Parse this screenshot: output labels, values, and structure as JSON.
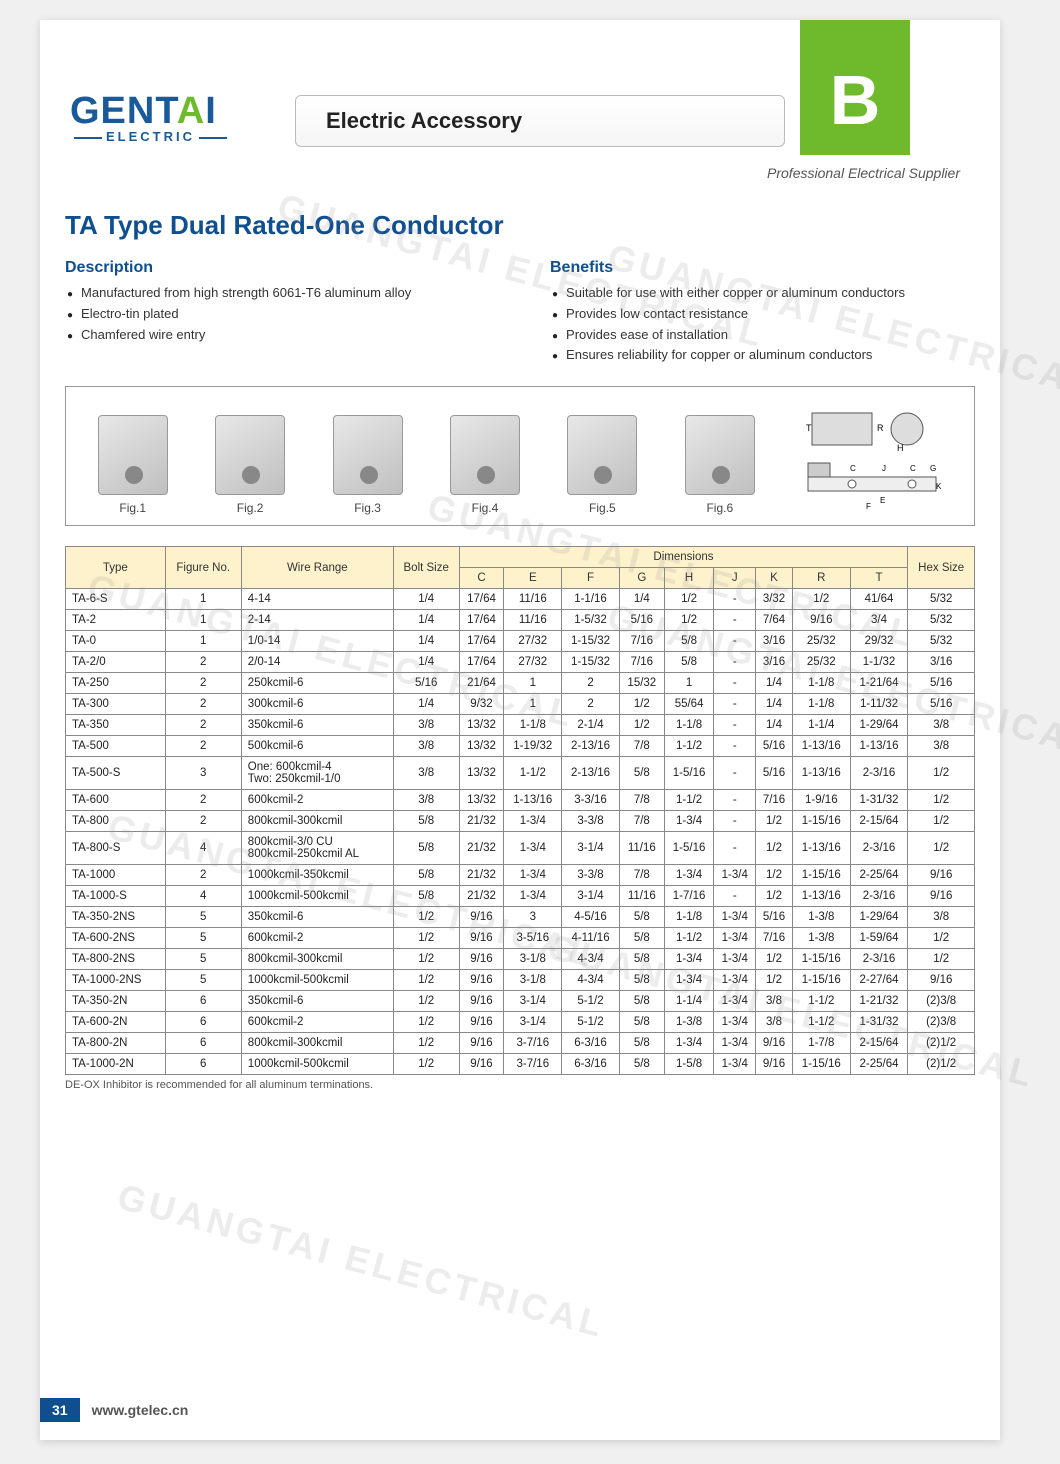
{
  "brand": {
    "name_prefix": "GENT",
    "name_accent": "A",
    "name_suffix": "I",
    "sub": "ELECTRIC"
  },
  "header": {
    "banner": "Electric Accessory",
    "badge": "B",
    "tagline": "Professional Electrical Supplier"
  },
  "product": {
    "title": "TA Type Dual Rated-One Conductor"
  },
  "description": {
    "heading": "Description",
    "items": [
      "Manufactured from high strength 6061-T6 aluminum alloy",
      "Electro-tin plated",
      "Chamfered wire entry"
    ]
  },
  "benefits": {
    "heading": "Benefits",
    "items": [
      "Suitable for use with either copper or aluminum conductors",
      "Provides low contact resistance",
      "Provides ease of installation",
      "Ensures reliability for copper or aluminum conductors"
    ]
  },
  "figures": [
    "Fig.1",
    "Fig.2",
    "Fig.3",
    "Fig.4",
    "Fig.5",
    "Fig.6"
  ],
  "watermark_text": "GUANGTAI ELECTRICAL",
  "table": {
    "header": {
      "type": "Type",
      "figno": "Figure No.",
      "wire": "Wire Range",
      "bolt": "Bolt Size",
      "dims": "Dimensions",
      "dim_cols": [
        "C",
        "E",
        "F",
        "G",
        "H",
        "J",
        "K",
        "R",
        "T"
      ],
      "hex": "Hex Size"
    },
    "rows": [
      {
        "type": "TA-6-S",
        "fig": "1",
        "wire": "4-14",
        "bolt": "1/4",
        "d": [
          "17/64",
          "11/16",
          "1-1/16",
          "1/4",
          "1/2",
          "-",
          "3/32",
          "1/2",
          "41/64"
        ],
        "hex": "5/32"
      },
      {
        "type": "TA-2",
        "fig": "1",
        "wire": "2-14",
        "bolt": "1/4",
        "d": [
          "17/64",
          "11/16",
          "1-5/32",
          "5/16",
          "1/2",
          "-",
          "7/64",
          "9/16",
          "3/4"
        ],
        "hex": "5/32"
      },
      {
        "type": "TA-0",
        "fig": "1",
        "wire": "1/0-14",
        "bolt": "1/4",
        "d": [
          "17/64",
          "27/32",
          "1-15/32",
          "7/16",
          "5/8",
          "-",
          "3/16",
          "25/32",
          "29/32"
        ],
        "hex": "5/32"
      },
      {
        "type": "TA-2/0",
        "fig": "2",
        "wire": "2/0-14",
        "bolt": "1/4",
        "d": [
          "17/64",
          "27/32",
          "1-15/32",
          "7/16",
          "5/8",
          "-",
          "3/16",
          "25/32",
          "1-1/32"
        ],
        "hex": "3/16"
      },
      {
        "type": "TA-250",
        "fig": "2",
        "wire": "250kcmil-6",
        "bolt": "5/16",
        "d": [
          "21/64",
          "1",
          "2",
          "15/32",
          "1",
          "-",
          "1/4",
          "1-1/8",
          "1-21/64"
        ],
        "hex": "5/16"
      },
      {
        "type": "TA-300",
        "fig": "2",
        "wire": "300kcmil-6",
        "bolt": "1/4",
        "d": [
          "9/32",
          "1",
          "2",
          "1/2",
          "55/64",
          "-",
          "1/4",
          "1-1/8",
          "1-11/32"
        ],
        "hex": "5/16"
      },
      {
        "type": "TA-350",
        "fig": "2",
        "wire": "350kcmil-6",
        "bolt": "3/8",
        "d": [
          "13/32",
          "1-1/8",
          "2-1/4",
          "1/2",
          "1-1/8",
          "-",
          "1/4",
          "1-1/4",
          "1-29/64"
        ],
        "hex": "3/8"
      },
      {
        "type": "TA-500",
        "fig": "2",
        "wire": "500kcmil-6",
        "bolt": "3/8",
        "d": [
          "13/32",
          "1-19/32",
          "2-13/16",
          "7/8",
          "1-1/2",
          "-",
          "5/16",
          "1-13/16",
          "1-13/16"
        ],
        "hex": "3/8"
      },
      {
        "type": "TA-500-S",
        "fig": "3",
        "wire": "One: 600kcmil-4\nTwo: 250kcmil-1/0",
        "bolt": "3/8",
        "d": [
          "13/32",
          "1-1/2",
          "2-13/16",
          "5/8",
          "1-5/16",
          "-",
          "5/16",
          "1-13/16",
          "2-3/16"
        ],
        "hex": "1/2"
      },
      {
        "type": "TA-600",
        "fig": "2",
        "wire": "600kcmil-2",
        "bolt": "3/8",
        "d": [
          "13/32",
          "1-13/16",
          "3-3/16",
          "7/8",
          "1-1/2",
          "-",
          "7/16",
          "1-9/16",
          "1-31/32"
        ],
        "hex": "1/2"
      },
      {
        "type": "TA-800",
        "fig": "2",
        "wire": "800kcmil-300kcmil",
        "bolt": "5/8",
        "d": [
          "21/32",
          "1-3/4",
          "3-3/8",
          "7/8",
          "1-3/4",
          "-",
          "1/2",
          "1-15/16",
          "2-15/64"
        ],
        "hex": "1/2"
      },
      {
        "type": "TA-800-S",
        "fig": "4",
        "wire": "800kcmil-3/0 CU\n800kcmil-250kcmil AL",
        "bolt": "5/8",
        "d": [
          "21/32",
          "1-3/4",
          "3-1/4",
          "11/16",
          "1-5/16",
          "-",
          "1/2",
          "1-13/16",
          "2-3/16"
        ],
        "hex": "1/2"
      },
      {
        "type": "TA-1000",
        "fig": "2",
        "wire": "1000kcmil-350kcmil",
        "bolt": "5/8",
        "d": [
          "21/32",
          "1-3/4",
          "3-3/8",
          "7/8",
          "1-3/4",
          "1-3/4",
          "1/2",
          "1-15/16",
          "2-25/64"
        ],
        "hex": "9/16"
      },
      {
        "type": "TA-1000-S",
        "fig": "4",
        "wire": "1000kcmil-500kcmil",
        "bolt": "5/8",
        "d": [
          "21/32",
          "1-3/4",
          "3-1/4",
          "11/16",
          "1-7/16",
          "-",
          "1/2",
          "1-13/16",
          "2-3/16"
        ],
        "hex": "9/16"
      },
      {
        "type": "TA-350-2NS",
        "fig": "5",
        "wire": "350kcmil-6",
        "bolt": "1/2",
        "d": [
          "9/16",
          "3",
          "4-5/16",
          "5/8",
          "1-1/8",
          "1-3/4",
          "5/16",
          "1-3/8",
          "1-29/64"
        ],
        "hex": "3/8"
      },
      {
        "type": "TA-600-2NS",
        "fig": "5",
        "wire": "600kcmil-2",
        "bolt": "1/2",
        "d": [
          "9/16",
          "3-5/16",
          "4-11/16",
          "5/8",
          "1-1/2",
          "1-3/4",
          "7/16",
          "1-3/8",
          "1-59/64"
        ],
        "hex": "1/2"
      },
      {
        "type": "TA-800-2NS",
        "fig": "5",
        "wire": "800kcmil-300kcmil",
        "bolt": "1/2",
        "d": [
          "9/16",
          "3-1/8",
          "4-3/4",
          "5/8",
          "1-3/4",
          "1-3/4",
          "1/2",
          "1-15/16",
          "2-3/16"
        ],
        "hex": "1/2"
      },
      {
        "type": "TA-1000-2NS",
        "fig": "5",
        "wire": "1000kcmil-500kcmil",
        "bolt": "1/2",
        "d": [
          "9/16",
          "3-1/8",
          "4-3/4",
          "5/8",
          "1-3/4",
          "1-3/4",
          "1/2",
          "1-15/16",
          "2-27/64"
        ],
        "hex": "9/16"
      },
      {
        "type": "TA-350-2N",
        "fig": "6",
        "wire": "350kcmil-6",
        "bolt": "1/2",
        "d": [
          "9/16",
          "3-1/4",
          "5-1/2",
          "5/8",
          "1-1/4",
          "1-3/4",
          "3/8",
          "1-1/2",
          "1-21/32"
        ],
        "hex": "(2)3/8"
      },
      {
        "type": "TA-600-2N",
        "fig": "6",
        "wire": "600kcmil-2",
        "bolt": "1/2",
        "d": [
          "9/16",
          "3-1/4",
          "5-1/2",
          "5/8",
          "1-3/8",
          "1-3/4",
          "3/8",
          "1-1/2",
          "1-31/32"
        ],
        "hex": "(2)3/8"
      },
      {
        "type": "TA-800-2N",
        "fig": "6",
        "wire": "800kcmil-300kcmil",
        "bolt": "1/2",
        "d": [
          "9/16",
          "3-7/16",
          "6-3/16",
          "5/8",
          "1-3/4",
          "1-3/4",
          "9/16",
          "1-7/8",
          "2-15/64"
        ],
        "hex": "(2)1/2"
      },
      {
        "type": "TA-1000-2N",
        "fig": "6",
        "wire": "1000kcmil-500kcmil",
        "bolt": "1/2",
        "d": [
          "9/16",
          "3-7/16",
          "6-3/16",
          "5/8",
          "1-5/8",
          "1-3/4",
          "9/16",
          "1-15/16",
          "2-25/64"
        ],
        "hex": "(2)1/2"
      }
    ],
    "footnote": "DE-OX Inhibitor is recommended for all aluminum terminations."
  },
  "footer": {
    "page": "31",
    "url": "www.gtelec.cn"
  },
  "colors": {
    "brand_blue": "#0f4f8f",
    "brand_green": "#6fb92c",
    "table_header_bg": "#fdf2cc",
    "border": "#888888"
  }
}
